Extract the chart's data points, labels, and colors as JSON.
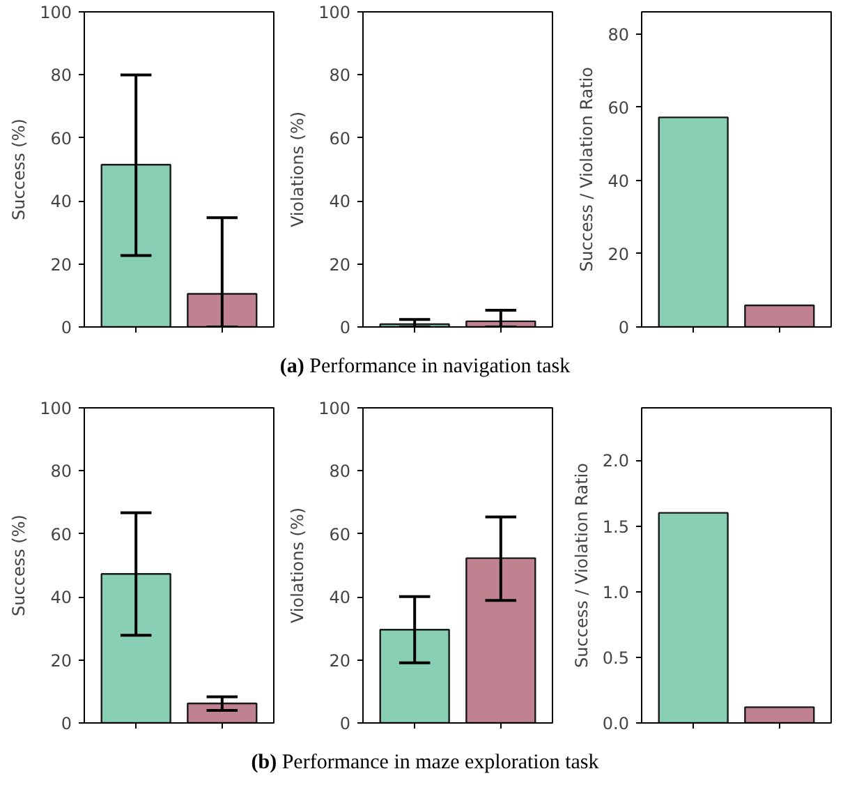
{
  "chart_data": [
    {
      "type": "bar",
      "ylabel": "Success (%)",
      "categories": [
        null,
        null
      ],
      "tick_labels": "y",
      "ylim": [
        0,
        100
      ],
      "yticks": [
        0,
        20,
        40,
        60,
        80,
        100
      ],
      "colors": [
        "#88cfb4",
        "#c08191"
      ],
      "values": [
        51.5,
        10.5
      ],
      "errors": [
        [
          22.7,
          80
        ],
        [
          0,
          34.7
        ]
      ]
    },
    {
      "type": "bar",
      "ylabel": "Violations (%)",
      "categories": [
        null,
        null
      ],
      "tick_labels": "y",
      "ylim": [
        0,
        100
      ],
      "yticks": [
        0,
        20,
        40,
        60,
        80,
        100
      ],
      "colors": [
        "#88cfb4",
        "#c08191"
      ],
      "values": [
        0.9,
        1.8
      ],
      "errors": [
        [
          0,
          2.4
        ],
        [
          0,
          5.3
        ]
      ]
    },
    {
      "type": "bar",
      "ylabel": "Success / Violation Ratio",
      "categories": [
        null,
        null
      ],
      "tick_labels": "y",
      "ylim": [
        0,
        86
      ],
      "yticks": [
        0,
        20,
        40,
        60,
        80
      ],
      "colors": [
        "#88cfb4",
        "#c08191"
      ],
      "values": [
        57.2,
        5.9
      ],
      "annotations": [
        "(a) Performance in navigation task"
      ]
    },
    {
      "type": "bar",
      "ylabel": "Success (%)",
      "categories": [
        null,
        null
      ],
      "tick_labels": "y",
      "ylim": [
        0,
        100
      ],
      "yticks": [
        0,
        20,
        40,
        60,
        80,
        100
      ],
      "colors": [
        "#88cfb4",
        "#c08191"
      ],
      "values": [
        47.3,
        6.2
      ],
      "errors": [
        [
          27.8,
          66.7
        ],
        [
          4.0,
          8.3
        ]
      ]
    },
    {
      "type": "bar",
      "ylabel": "Violations (%)",
      "categories": [
        null,
        null
      ],
      "tick_labels": "y",
      "ylim": [
        0,
        100
      ],
      "yticks": [
        0,
        20,
        40,
        60,
        80,
        100
      ],
      "colors": [
        "#88cfb4",
        "#c08191"
      ],
      "values": [
        29.6,
        52.3
      ],
      "errors": [
        [
          19.1,
          40.1
        ],
        [
          38.9,
          65.4
        ]
      ]
    },
    {
      "type": "bar",
      "ylabel": "Success / Violation Ratio",
      "categories": [
        null,
        null
      ],
      "tick_labels": "y",
      "ylim": [
        0,
        2.4
      ],
      "yticks": [
        {
          "value": 0,
          "label": "0.0"
        },
        0.5,
        {
          "value": 1,
          "label": "1.0"
        },
        1.5,
        {
          "value": 2,
          "label": "2.0"
        }
      ],
      "colors": [
        "#88cfb4",
        "#c08191"
      ],
      "values": [
        1.6,
        0.12
      ],
      "annotations": [
        "(b) Performance in maze exploration task"
      ]
    }
  ]
}
